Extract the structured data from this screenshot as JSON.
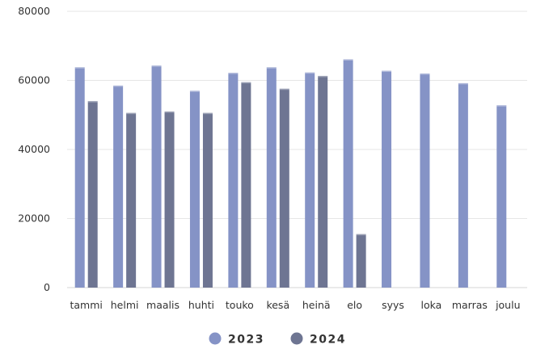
{
  "chart_data": {
    "type": "bar",
    "categories": [
      "tammi",
      "helmi",
      "maalis",
      "huhti",
      "touko",
      "kesä",
      "heinä",
      "elo",
      "syys",
      "loka",
      "marras",
      "joulu"
    ],
    "series": [
      {
        "name": "2023",
        "color": "#8593c6",
        "values": [
          63800,
          58500,
          64300,
          57000,
          62200,
          63800,
          62300,
          66100,
          62800,
          62000,
          59200,
          52800
        ]
      },
      {
        "name": "2024",
        "color": "#6e7592",
        "values": [
          54000,
          50600,
          51000,
          50600,
          59500,
          57600,
          61300,
          15500,
          null,
          null,
          null,
          null
        ]
      }
    ],
    "ylim": [
      0,
      80000
    ],
    "yticks": [
      0,
      20000,
      40000,
      60000,
      80000
    ],
    "grid": true,
    "legend_position": "bottom"
  }
}
